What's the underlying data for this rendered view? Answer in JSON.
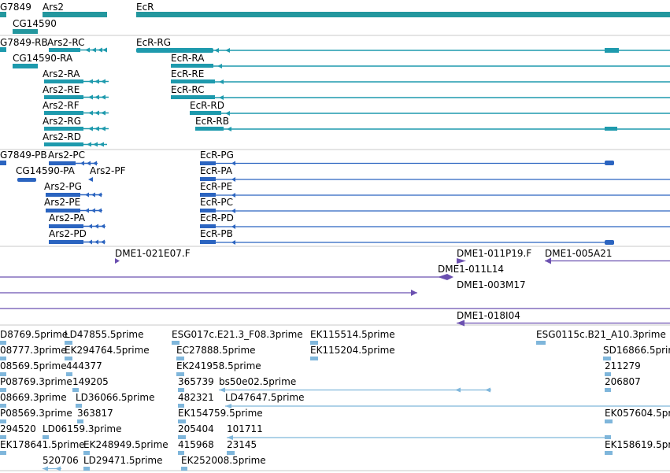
{
  "colors": {
    "gene": "#23979e",
    "mrna": "#1e9aad",
    "cds": "#2b64c0",
    "clone": "#6b50b0",
    "est": "#7fb6db",
    "text": "#000000",
    "divider": "#c8c8c8"
  },
  "tracks": {
    "genes": [
      {
        "label": "G7849",
        "icon": "gene-arrow-left-icon"
      },
      {
        "label": "Ars2",
        "icon": "gene-bar-icon"
      },
      {
        "label": "EcR",
        "icon": "gene-bar-icon"
      },
      {
        "label": "CG14590",
        "icon": "gene-bar-icon"
      }
    ],
    "transcripts": [
      {
        "label": "G7849-RB"
      },
      {
        "label": "Ars2-RC"
      },
      {
        "label": "EcR-RG"
      },
      {
        "label": "CG14590-RA"
      },
      {
        "label": "EcR-RA"
      },
      {
        "label": "Ars2-RA"
      },
      {
        "label": "EcR-RE"
      },
      {
        "label": "Ars2-RE"
      },
      {
        "label": "EcR-RC"
      },
      {
        "label": "Ars2-RF"
      },
      {
        "label": "EcR-RD"
      },
      {
        "label": "Ars2-RG"
      },
      {
        "label": "EcR-RB"
      },
      {
        "label": "Ars2-RD"
      }
    ],
    "proteins": [
      {
        "label": "G7849-PB"
      },
      {
        "label": "Ars2-PC"
      },
      {
        "label": "EcR-PG"
      },
      {
        "label": "CG14590-PA"
      },
      {
        "label": "Ars2-PF"
      },
      {
        "label": "EcR-PA"
      },
      {
        "label": "Ars2-PG"
      },
      {
        "label": "EcR-PE"
      },
      {
        "label": "Ars2-PE"
      },
      {
        "label": "EcR-PC"
      },
      {
        "label": "Ars2-PA"
      },
      {
        "label": "EcR-PD"
      },
      {
        "label": "Ars2-PD"
      },
      {
        "label": "EcR-PB"
      }
    ],
    "clones": [
      {
        "label": "DME1-021E07.F"
      },
      {
        "label": "DME1-011P19.F"
      },
      {
        "label": "DME1-005A21"
      },
      {
        "label": "DME1-011L14"
      },
      {
        "label": "DME1-003M17"
      },
      {
        "label": "DME1-018I04"
      }
    ],
    "ests": [
      {
        "label": "D8769.5prime"
      },
      {
        "label": "LD47855.5prime"
      },
      {
        "label": "ESG017c.E21.3_F08.3prime"
      },
      {
        "label": "EK115514.5prime"
      },
      {
        "label": "ESG0115c.B21_A10.3prime"
      },
      {
        "label": "08777.3prime"
      },
      {
        "label": "EK294764.5prime"
      },
      {
        "label": "EC27888.5prime"
      },
      {
        "label": "EK115204.5prime"
      },
      {
        "label": "SD16866.5prime"
      },
      {
        "label": "08569.5prime"
      },
      {
        "label": "444377"
      },
      {
        "label": "EK241958.5prime"
      },
      {
        "label": "211279"
      },
      {
        "label": "P08769.3prime"
      },
      {
        "label": "149205"
      },
      {
        "label": "365739"
      },
      {
        "label": "bs50e02.5prime"
      },
      {
        "label": "206807"
      },
      {
        "label": "08669.3prime"
      },
      {
        "label": "LD36066.5prime"
      },
      {
        "label": "482321"
      },
      {
        "label": "LD47647.5prime"
      },
      {
        "label": "P08569.3prime"
      },
      {
        "label": "363817"
      },
      {
        "label": "EK154759.5prime"
      },
      {
        "label": "EK057604.5prime"
      },
      {
        "label": "294520"
      },
      {
        "label": "LD06159.3prime"
      },
      {
        "label": "205404"
      },
      {
        "label": "101711"
      },
      {
        "label": "EK178641.5prime"
      },
      {
        "label": "EK248949.5prime"
      },
      {
        "label": "415968"
      },
      {
        "label": "23145"
      },
      {
        "label": "EK158619.5prime"
      },
      {
        "label": "520706"
      },
      {
        "label": "LD29471.5prime"
      },
      {
        "label": "EK252008.5prime"
      }
    ]
  }
}
